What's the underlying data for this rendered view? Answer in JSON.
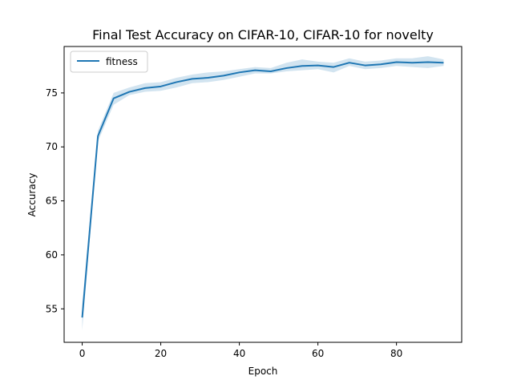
{
  "chart_data": {
    "type": "line",
    "title": "Final Test Accuracy on CIFAR-10, CIFAR-10 for novelty",
    "xlabel": "Epoch",
    "ylabel": "Accuracy",
    "xlim": [
      -4.6,
      96.6
    ],
    "ylim": [
      51.9,
      79.3
    ],
    "xticks": [
      0,
      20,
      40,
      60,
      80
    ],
    "yticks": [
      55,
      60,
      65,
      70,
      75
    ],
    "legend_position": "upper-left",
    "grid": false,
    "series": [
      {
        "name": "fitness",
        "color": "#1f77b4",
        "band_color": "#1f77b4",
        "x": [
          0,
          4,
          8,
          12,
          16,
          20,
          24,
          28,
          32,
          36,
          40,
          44,
          48,
          52,
          56,
          60,
          64,
          68,
          72,
          76,
          80,
          84,
          88,
          92
        ],
        "y": [
          54.2,
          71.0,
          74.5,
          75.1,
          75.45,
          75.6,
          76.0,
          76.3,
          76.4,
          76.6,
          76.9,
          77.1,
          77.0,
          77.3,
          77.5,
          77.55,
          77.4,
          77.8,
          77.55,
          77.65,
          77.85,
          77.8,
          77.85,
          77.8
        ],
        "y_lower": [
          53.0,
          70.5,
          73.9,
          74.8,
          75.1,
          75.2,
          75.5,
          75.9,
          76.0,
          76.2,
          76.5,
          76.8,
          76.8,
          77.0,
          77.1,
          77.2,
          76.9,
          77.5,
          77.2,
          77.3,
          77.5,
          77.4,
          77.3,
          77.5
        ],
        "y_upper": [
          55.4,
          71.5,
          75.0,
          75.5,
          75.9,
          76.0,
          76.4,
          76.7,
          76.9,
          77.0,
          77.2,
          77.4,
          77.3,
          77.8,
          78.1,
          77.9,
          77.8,
          78.2,
          77.9,
          78.0,
          78.2,
          78.2,
          78.4,
          78.1
        ]
      }
    ]
  }
}
